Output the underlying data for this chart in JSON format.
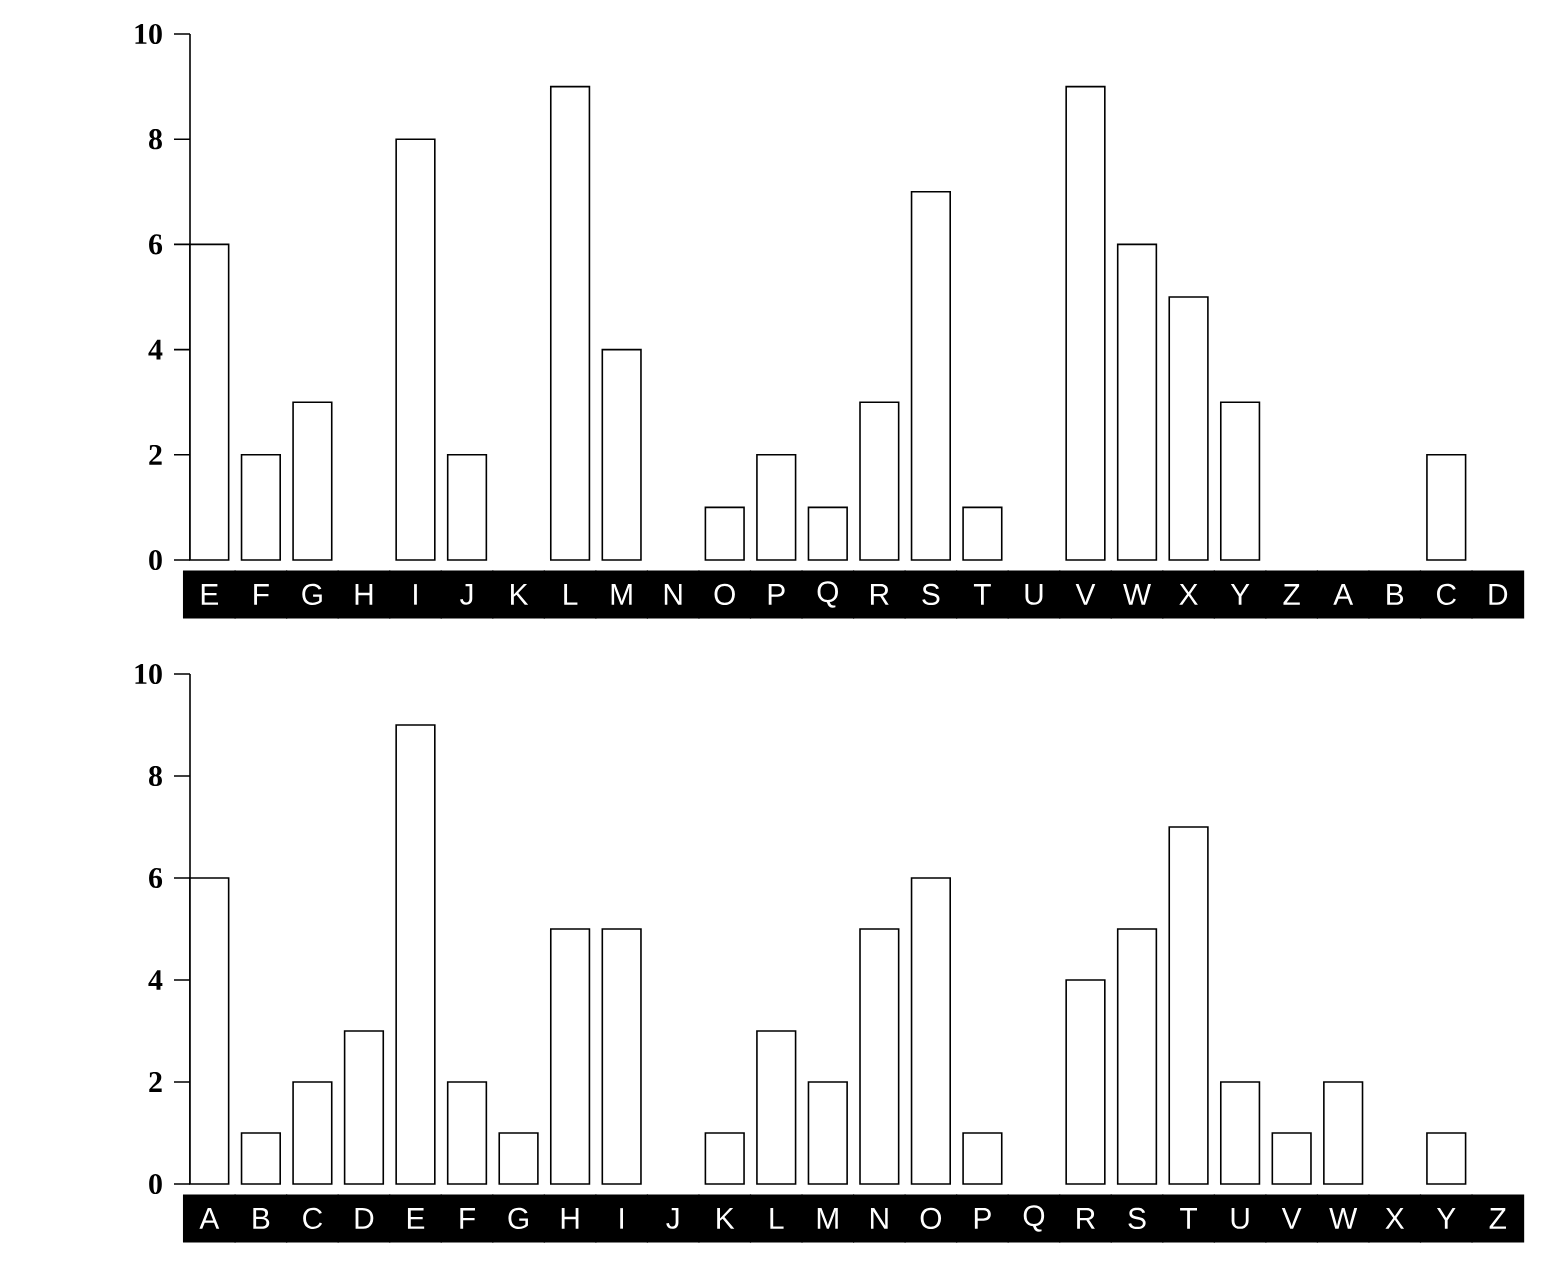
{
  "chart_data": [
    {
      "type": "bar",
      "categories": [
        "E",
        "F",
        "G",
        "H",
        "I",
        "J",
        "K",
        "L",
        "M",
        "N",
        "O",
        "P",
        "Q",
        "R",
        "S",
        "T",
        "U",
        "V",
        "W",
        "X",
        "Y",
        "Z",
        "A",
        "B",
        "C",
        "D"
      ],
      "values": [
        6,
        2,
        3,
        0,
        8,
        2,
        0,
        9,
        4,
        0,
        1,
        2,
        1,
        3,
        7,
        1,
        0,
        9,
        6,
        5,
        3,
        0,
        0,
        0,
        2,
        0
      ],
      "color": "#ffffff",
      "ylim": [
        0,
        10
      ],
      "yticks": [
        0,
        2,
        4,
        6,
        8,
        10
      ]
    },
    {
      "type": "bar",
      "categories": [
        "A",
        "B",
        "C",
        "D",
        "E",
        "F",
        "G",
        "H",
        "I",
        "J",
        "K",
        "L",
        "M",
        "N",
        "O",
        "P",
        "Q",
        "R",
        "S",
        "T",
        "U",
        "V",
        "W",
        "X",
        "Y",
        "Z"
      ],
      "values": [
        6,
        1,
        2,
        3,
        9,
        2,
        1,
        5,
        5,
        0,
        1,
        3,
        2,
        5,
        6,
        1,
        0,
        4,
        5,
        7,
        2,
        1,
        2,
        0,
        1,
        0
      ],
      "color": "#ffffff",
      "ylim": [
        0,
        10
      ],
      "yticks": [
        0,
        2,
        4,
        6,
        8,
        10
      ]
    }
  ]
}
